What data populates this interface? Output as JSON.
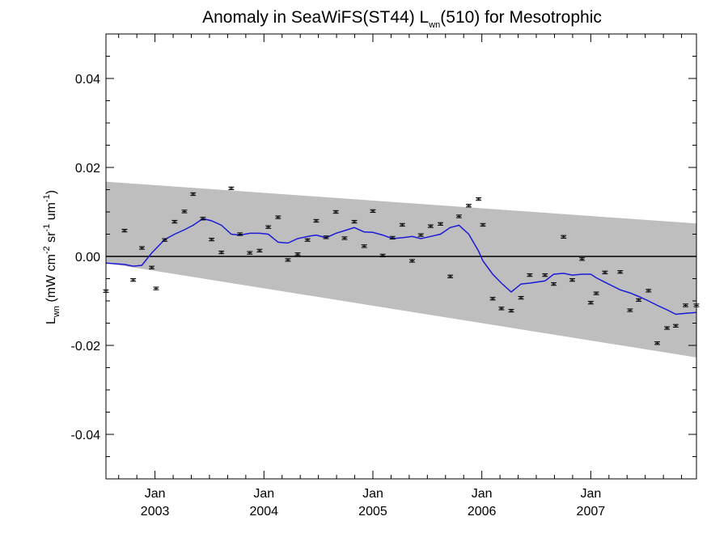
{
  "chart_data": {
    "type": "line",
    "title": {
      "prefix": "Anomaly in SeaWiFS(ST44) L",
      "subscript": "wn",
      "suffix": "(510) for Mesotrophic"
    },
    "ylabel": {
      "main": "L",
      "subscript": "wn",
      "unit_open": " (mW cm",
      "exp1": "-2",
      "mid1": " sr",
      "exp2": "-1",
      "mid2": " um",
      "exp3": "-1",
      "close": ")"
    },
    "xlim": [
      2002.55,
      2007.97
    ],
    "ylim": [
      -0.05,
      0.05
    ],
    "yticks": [
      -0.04,
      -0.02,
      0.0,
      0.02,
      0.04
    ],
    "ytick_labels": [
      "-0.04",
      "-0.02",
      "0.00",
      "0.02",
      "0.04"
    ],
    "xticks": [
      {
        "x": 2003.0,
        "month": "Jan",
        "year": "2003"
      },
      {
        "x": 2004.0,
        "month": "Jan",
        "year": "2004"
      },
      {
        "x": 2005.0,
        "month": "Jan",
        "year": "2005"
      },
      {
        "x": 2006.0,
        "month": "Jan",
        "year": "2006"
      },
      {
        "x": 2007.0,
        "month": "Jan",
        "year": "2007"
      }
    ],
    "band": {
      "x": [
        2002.55,
        2007.97
      ],
      "upper": [
        0.0168,
        0.0074
      ],
      "lower": [
        -0.0015,
        -0.0227
      ]
    },
    "zero_line": 0.0,
    "series": [
      {
        "type": "errorbar",
        "color": "#000000",
        "x": [
          2002.55,
          2002.72,
          2002.8,
          2002.88,
          2002.97,
          2003.01,
          2003.09,
          2003.18,
          2003.27,
          2003.35,
          2003.44,
          2003.52,
          2003.61,
          2003.7,
          2003.78,
          2003.87,
          2003.96,
          2004.04,
          2004.13,
          2004.22,
          2004.31,
          2004.4,
          2004.48,
          2004.57,
          2004.66,
          2004.74,
          2004.83,
          2004.92,
          2005.0,
          2005.09,
          2005.18,
          2005.27,
          2005.36,
          2005.44,
          2005.53,
          2005.62,
          2005.71,
          2005.79,
          2005.88,
          2005.97,
          2006.01,
          2006.1,
          2006.18,
          2006.27,
          2006.36,
          2006.44,
          2006.58,
          2006.66,
          2006.75,
          2006.83,
          2006.92,
          2007.0,
          2007.05,
          2007.13,
          2007.27,
          2007.36,
          2007.44,
          2007.53,
          2007.61,
          2007.7,
          2007.78,
          2007.87,
          2007.97
        ],
        "y": [
          -0.0078,
          0.0058,
          -0.0053,
          0.0019,
          -0.0025,
          -0.0072,
          0.0037,
          0.0078,
          0.0101,
          0.014,
          0.0085,
          0.0038,
          0.0009,
          0.0153,
          0.005,
          0.0008,
          0.0013,
          0.0066,
          0.0088,
          -0.0008,
          0.0005,
          0.0037,
          0.008,
          0.0043,
          0.01,
          0.0041,
          0.0078,
          0.0023,
          0.0102,
          0.0002,
          0.0042,
          0.0071,
          -0.001,
          0.0048,
          0.0068,
          0.0073,
          -0.0045,
          0.009,
          0.0114,
          0.0129,
          0.0071,
          -0.0095,
          -0.0117,
          -0.0122,
          -0.0093,
          -0.0042,
          -0.0042,
          -0.0062,
          0.0044,
          -0.0053,
          -0.0006,
          -0.0104,
          -0.0083,
          -0.0036,
          -0.0035,
          -0.0121,
          -0.0098,
          -0.0077,
          -0.0195,
          -0.0161,
          -0.0156,
          -0.011,
          -0.011
        ],
        "err": 0.0003
      },
      {
        "type": "line",
        "color": "#1a1ad9",
        "x": [
          2002.55,
          2002.72,
          2002.8,
          2002.88,
          2002.97,
          2003.01,
          2003.09,
          2003.18,
          2003.27,
          2003.35,
          2003.44,
          2003.52,
          2003.61,
          2003.7,
          2003.78,
          2003.87,
          2003.96,
          2004.04,
          2004.13,
          2004.22,
          2004.31,
          2004.4,
          2004.48,
          2004.57,
          2004.66,
          2004.74,
          2004.83,
          2004.92,
          2005.0,
          2005.09,
          2005.18,
          2005.27,
          2005.36,
          2005.44,
          2005.53,
          2005.62,
          2005.71,
          2005.79,
          2005.88,
          2005.97,
          2006.01,
          2006.1,
          2006.18,
          2006.27,
          2006.36,
          2006.44,
          2006.58,
          2006.66,
          2006.75,
          2006.83,
          2006.92,
          2007.0,
          2007.05,
          2007.13,
          2007.27,
          2007.36,
          2007.44,
          2007.53,
          2007.61,
          2007.7,
          2007.78,
          2007.87,
          2007.97
        ],
        "y": [
          -0.0015,
          -0.0018,
          -0.0022,
          -0.002,
          0.0008,
          0.0018,
          0.0038,
          0.005,
          0.006,
          0.007,
          0.0085,
          0.008,
          0.007,
          0.005,
          0.0048,
          0.0052,
          0.0052,
          0.005,
          0.0032,
          0.003,
          0.004,
          0.0045,
          0.0048,
          0.0042,
          0.0052,
          0.0058,
          0.0065,
          0.0055,
          0.0054,
          0.0048,
          0.004,
          0.0042,
          0.0045,
          0.004,
          0.0045,
          0.005,
          0.0065,
          0.007,
          0.005,
          0.0012,
          -0.001,
          -0.004,
          -0.006,
          -0.008,
          -0.0062,
          -0.006,
          -0.0055,
          -0.004,
          -0.0038,
          -0.0042,
          -0.004,
          -0.004,
          -0.0048,
          -0.0058,
          -0.0075,
          -0.0082,
          -0.009,
          -0.01,
          -0.011,
          -0.012,
          -0.013,
          -0.0128,
          -0.0126
        ]
      }
    ],
    "colors": {
      "band": "#bebebe",
      "line": "#1a1ad9",
      "points": "#000000",
      "axis": "#000000"
    },
    "grid": false,
    "legend": "none"
  }
}
